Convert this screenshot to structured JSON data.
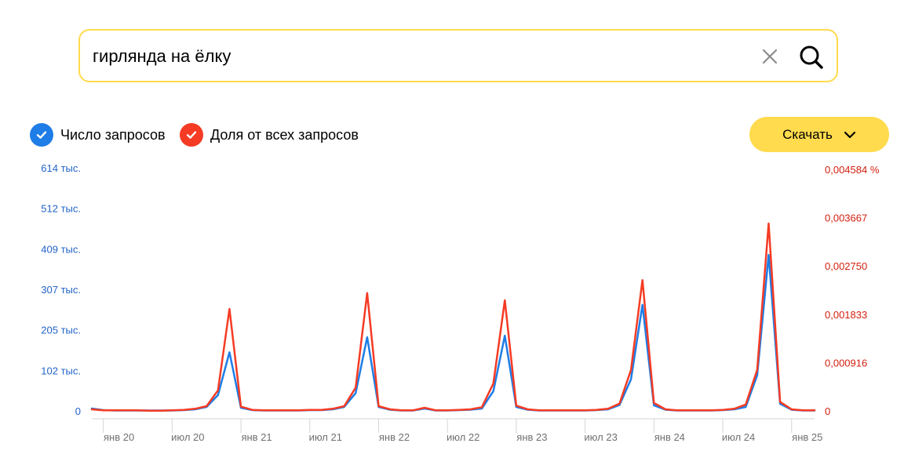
{
  "search": {
    "query": "гирлянда на ёлку"
  },
  "legend": {
    "items": [
      {
        "label": "Число запросов",
        "color": "#1e7de6"
      },
      {
        "label": "Доля от всех запросов",
        "color": "#f53b24"
      }
    ]
  },
  "toolbar": {
    "download_label": "Скачать"
  },
  "icons": {
    "clear": "close-icon",
    "search": "search-icon",
    "check": "check-icon",
    "dropdown": "chevron-down-icon"
  },
  "chart_data": {
    "type": "line",
    "xlabel": "",
    "x_tick_labels": [
      "янв 20",
      "июл 20",
      "янв 21",
      "июл 21",
      "янв 22",
      "июл 22",
      "янв 23",
      "июл 23",
      "янв 24",
      "июл 24",
      "янв 25"
    ],
    "y_left": {
      "ticks": [
        0,
        102,
        205,
        307,
        409,
        512,
        614
      ],
      "tick_labels": [
        "0",
        "102 тыс.",
        "205 тыс.",
        "307 тыс.",
        "409 тыс.",
        "512 тыс.",
        "614 тыс."
      ],
      "range": [
        0,
        614
      ],
      "unit": "тыс.",
      "color": "#2263c7"
    },
    "y_right": {
      "ticks": [
        0,
        0.000916,
        0.001833,
        0.00275,
        0.003667,
        0.004584
      ],
      "tick_labels": [
        "0",
        "0,000916",
        "0,001833",
        "0,002750",
        "0,003667",
        "0,004584 %"
      ],
      "range": [
        0,
        0.004584
      ],
      "unit": "%",
      "color": "#d32011"
    },
    "grid": false,
    "x": [
      "2019-12",
      "2020-01",
      "2020-02",
      "2020-03",
      "2020-04",
      "2020-05",
      "2020-06",
      "2020-07",
      "2020-08",
      "2020-09",
      "2020-10",
      "2020-11",
      "2020-12",
      "2021-01",
      "2021-02",
      "2021-03",
      "2021-04",
      "2021-05",
      "2021-06",
      "2021-07",
      "2021-08",
      "2021-09",
      "2021-10",
      "2021-11",
      "2021-12",
      "2022-01",
      "2022-02",
      "2022-03",
      "2022-04",
      "2022-05",
      "2022-06",
      "2022-07",
      "2022-08",
      "2022-09",
      "2022-10",
      "2022-11",
      "2022-12",
      "2023-01",
      "2023-02",
      "2023-03",
      "2023-04",
      "2023-05",
      "2023-06",
      "2023-07",
      "2023-08",
      "2023-09",
      "2023-10",
      "2023-11",
      "2023-12",
      "2024-01",
      "2024-02",
      "2024-03",
      "2024-04",
      "2024-05",
      "2024-06",
      "2024-07",
      "2024-08",
      "2024-09",
      "2024-10",
      "2024-11",
      "2024-12",
      "2025-01",
      "2025-02",
      "2025-03"
    ],
    "series": [
      {
        "name": "Число запросов",
        "axis": "left",
        "unit": "тыс.",
        "values": [
          6,
          2,
          1,
          1,
          1,
          1,
          1,
          1,
          2,
          4,
          10,
          40,
          148,
          8,
          2,
          1,
          1,
          1,
          1,
          2,
          2,
          4,
          10,
          45,
          186,
          10,
          3,
          1,
          1,
          6,
          1,
          1,
          2,
          3,
          6,
          50,
          190,
          10,
          3,
          1,
          1,
          1,
          1,
          1,
          2,
          4,
          15,
          80,
          268,
          14,
          3,
          1,
          1,
          1,
          1,
          2,
          4,
          10,
          90,
          394,
          18,
          3,
          1,
          1
        ]
      },
      {
        "name": "Доля от всех запросов",
        "axis": "right",
        "unit": "%",
        "values": [
          3e-05,
          1e-05,
          1e-05,
          1e-05,
          1e-05,
          5e-06,
          5e-06,
          1e-05,
          2e-05,
          4e-05,
          9e-05,
          0.00039,
          0.001935,
          8e-05,
          2e-05,
          1e-05,
          1e-05,
          1e-05,
          1e-05,
          2e-05,
          2e-05,
          4e-05,
          9e-05,
          0.00044,
          0.002235,
          9e-05,
          3e-05,
          1e-05,
          1e-05,
          6e-05,
          1e-05,
          1e-05,
          2e-05,
          3e-05,
          7e-05,
          0.00052,
          0.0021,
          0.0001,
          3e-05,
          1e-05,
          1e-05,
          1e-05,
          1e-05,
          1e-05,
          2e-05,
          4e-05,
          0.00014,
          0.00078,
          0.002482,
          0.00015,
          3e-05,
          1e-05,
          1e-05,
          1e-05,
          1e-05,
          2e-05,
          4e-05,
          0.00012,
          0.00078,
          0.003557,
          0.00017,
          3e-05,
          1e-05,
          1e-05
        ]
      }
    ]
  }
}
